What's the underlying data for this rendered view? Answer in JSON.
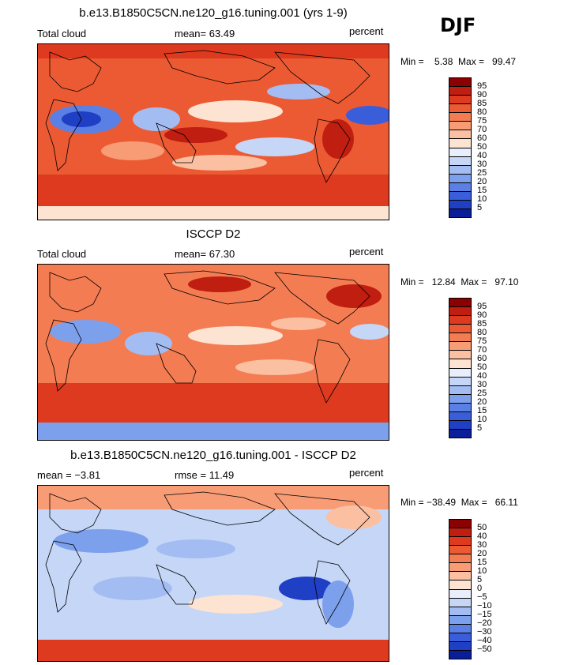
{
  "season": "DJF",
  "palette_abs": [
    "#8b0000",
    "#c01e10",
    "#dd3a1f",
    "#ec5a33",
    "#f47c52",
    "#f89c76",
    "#fbbfa1",
    "#fde3d1",
    "#e8eefc",
    "#c6d6f7",
    "#a3bdf2",
    "#7da0ec",
    "#5a80e6",
    "#3a5ed9",
    "#1f3fc4",
    "#0a1e99"
  ],
  "palette_diff": [
    "#8b0000",
    "#c01e10",
    "#dd3a1f",
    "#ec5a33",
    "#f47c52",
    "#f89c76",
    "#fbbfa1",
    "#fde3d1",
    "#e8eefc",
    "#c6d6f7",
    "#a3bdf2",
    "#7da0ec",
    "#5a80e6",
    "#3a5ed9",
    "#1f3fc4",
    "#0a1e99"
  ],
  "colorbar_abs_labels": [
    "95",
    "90",
    "85",
    "80",
    "75",
    "70",
    "60",
    "50",
    "40",
    "30",
    "25",
    "20",
    "15",
    "10",
    "5"
  ],
  "colorbar_diff_labels": [
    "50",
    "40",
    "30",
    "20",
    "15",
    "10",
    "5",
    "0",
    "−5",
    "−10",
    "−15",
    "−20",
    "−30",
    "−40",
    "−50"
  ],
  "panels": [
    {
      "title": "b.e13.B1850C5CN.ne120_g16.tuning.001 (yrs 1-9)",
      "left_label": "Total cloud",
      "mean_label": "mean=   63.49",
      "units": "percent",
      "min_max": "Min =    5.38  Max =   99.47"
    },
    {
      "title": "ISCCP D2",
      "left_label": "Total cloud",
      "mean_label": "mean=   67.30",
      "units": "percent",
      "min_max": "Min =   12.84  Max =   97.10"
    },
    {
      "title": "b.e13.B1850C5CN.ne120_g16.tuning.001 - ISCCP D2",
      "left_label": "mean =   −3.81",
      "mean_label": "rmse =   11.49",
      "units": "percent",
      "min_max": "Min = −38.49  Max =   66.11"
    }
  ]
}
